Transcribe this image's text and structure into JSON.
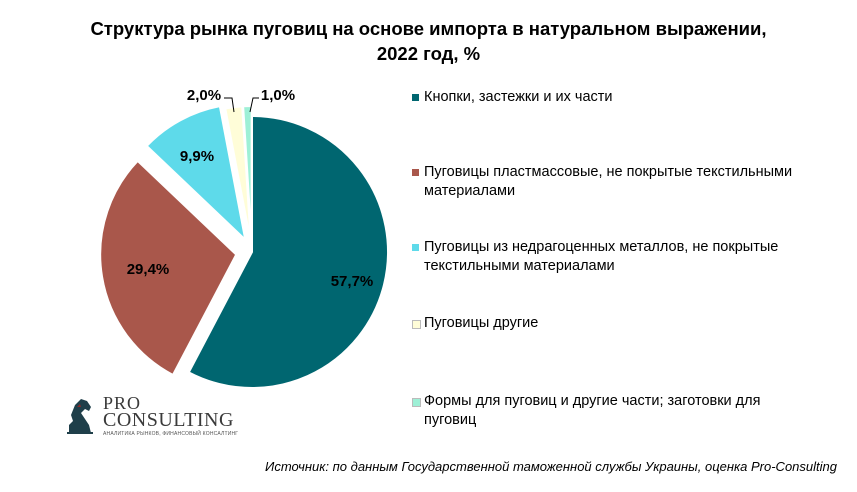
{
  "chart_data": {
    "type": "pie",
    "title_line1": "Структура рынка пуговиц на основе импорта в натуральном выражении,",
    "title_line2": "2022 год, %",
    "slices": [
      {
        "label": "Кнопки, застежки и их части",
        "value": 57.7,
        "display": "57,7%",
        "color": "#006670"
      },
      {
        "label": "Пуговицы пластмассовые, не покрытые текстильными материалами",
        "value": 29.4,
        "display": "29,4%",
        "color": "#A9574B"
      },
      {
        "label": "Пуговицы из недрагоценных металлов, не покрытые текстильными материалами",
        "value": 9.9,
        "display": "9,9%",
        "color": "#5EDAEA"
      },
      {
        "label": "Пуговицы другие",
        "value": 2.0,
        "display": "2,0%",
        "color": "#FFFDD8"
      },
      {
        "label": "Формы для пуговиц и другие части; заготовки для пуговиц",
        "value": 1.0,
        "display": "1,0%",
        "color": "#9EF0D6"
      }
    ],
    "legend_position": "right"
  },
  "source": "Источник: по данным Государственной таможенной службы Украины, оценка Pro-Consulting",
  "logo": {
    "line1": "PRO",
    "line2": "CONSULTING",
    "tagline": "АНАЛИТИКА РЫНКОВ, ФИНАНСОВЫЙ КОНСАЛТИНГ"
  }
}
